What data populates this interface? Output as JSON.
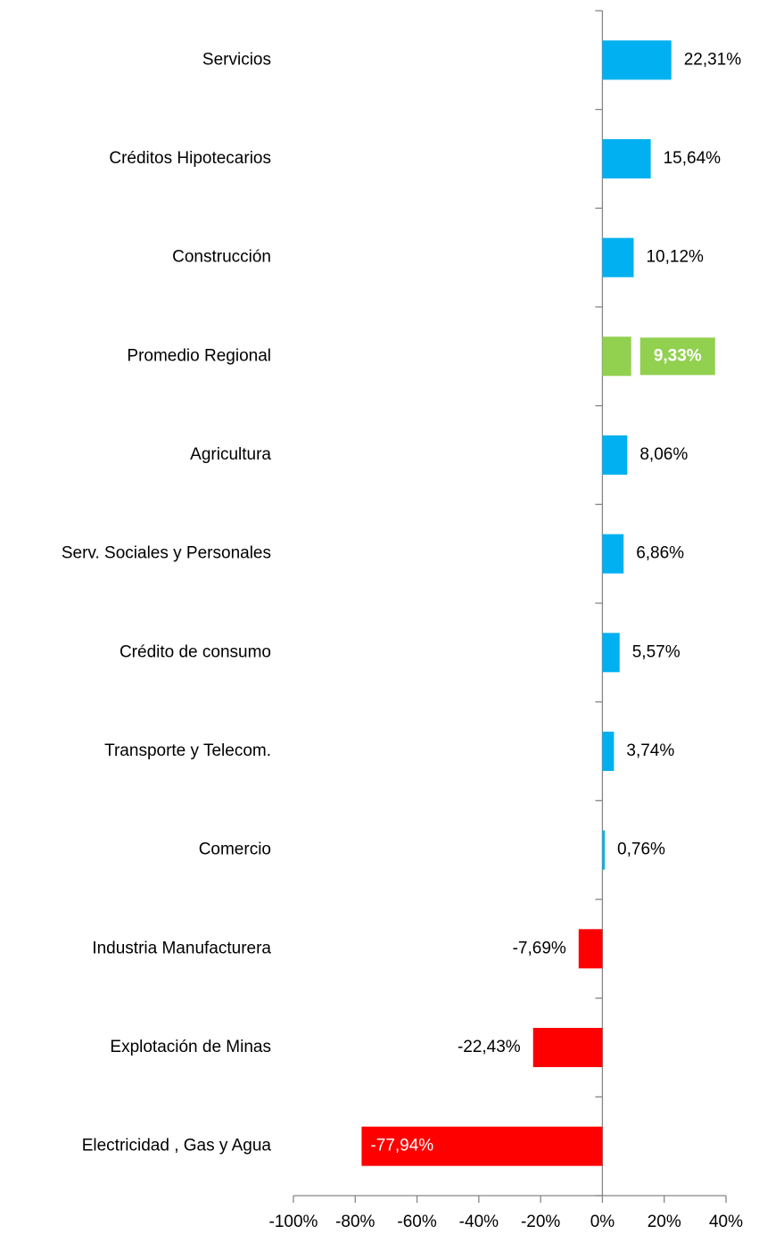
{
  "chart_data": {
    "type": "barh",
    "categories": [
      "Servicios",
      "Créditos Hipotecarios",
      "Construcción",
      "Promedio Regional",
      "Agricultura",
      "Serv. Sociales y Personales",
      "Crédito de consumo",
      "Transporte y Telecom.",
      "Comercio",
      "Industria Manufacturera",
      "Explotación de Minas",
      "Electricidad , Gas y Agua"
    ],
    "values": [
      22.31,
      15.64,
      10.12,
      9.33,
      8.06,
      6.86,
      5.57,
      3.74,
      0.76,
      -7.69,
      -22.43,
      -77.94
    ],
    "value_labels": [
      "22,31%",
      "15,64%",
      "10,12%",
      "9,33%",
      "8,06%",
      "6,86%",
      "5,57%",
      "3,74%",
      "0,76%",
      "-7,69%",
      "-22,43%",
      "-77,94%"
    ],
    "colors": [
      "#00b0f0",
      "#00b0f0",
      "#00b0f0",
      "#92d050",
      "#00b0f0",
      "#00b0f0",
      "#00b0f0",
      "#00b0f0",
      "#00b0f0",
      "#ff0000",
      "#ff0000",
      "#ff0000"
    ],
    "xlim": [
      -100,
      40
    ],
    "xticks": [
      {
        "value": -100,
        "label": "-100%"
      },
      {
        "value": -80,
        "label": "-80%"
      },
      {
        "value": -60,
        "label": "-60%"
      },
      {
        "value": -40,
        "label": "-40%"
      },
      {
        "value": -20,
        "label": "-20%"
      },
      {
        "value": 0,
        "label": "0%"
      },
      {
        "value": 20,
        "label": "20%"
      },
      {
        "value": 40,
        "label": "40%"
      }
    ],
    "grid": false
  }
}
